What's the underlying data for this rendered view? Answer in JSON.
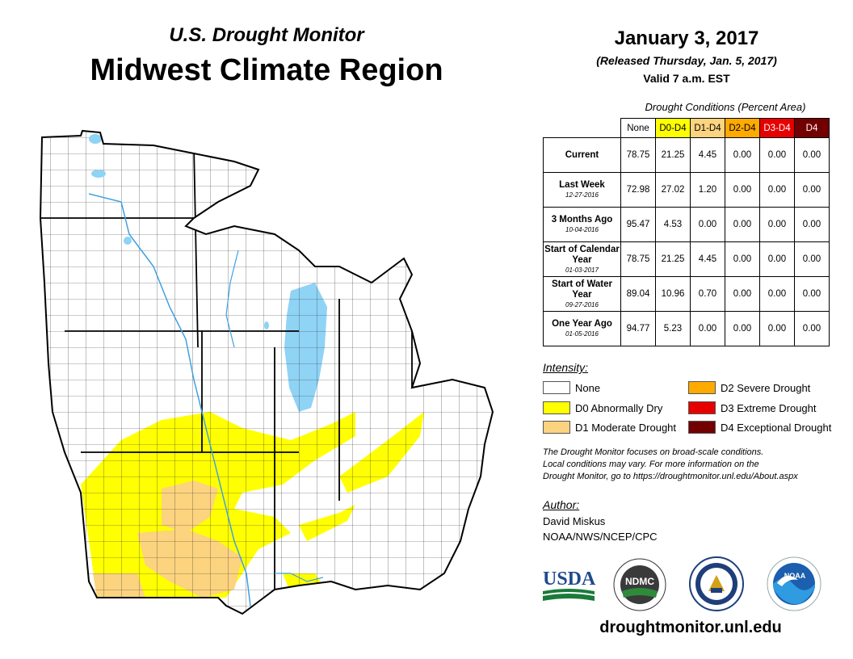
{
  "header": {
    "subtitle": "U.S. Drought Monitor",
    "title": "Midwest Climate Region",
    "date": "January 3, 2017",
    "released": "(Released Thursday, Jan. 5, 2017)",
    "valid": "Valid 7 a.m. EST"
  },
  "conditions": {
    "caption": "Drought Conditions (Percent Area)",
    "columns": [
      "None",
      "D0-D4",
      "D1-D4",
      "D2-D4",
      "D3-D4",
      "D4"
    ],
    "rows": [
      {
        "label": "Current",
        "sublabel": "",
        "values": [
          "78.75",
          "21.25",
          "4.45",
          "0.00",
          "0.00",
          "0.00"
        ]
      },
      {
        "label": "Last Week",
        "sublabel": "12-27-2016",
        "values": [
          "72.98",
          "27.02",
          "1.20",
          "0.00",
          "0.00",
          "0.00"
        ]
      },
      {
        "label": "3 Months Ago",
        "sublabel": "10-04-2016",
        "values": [
          "95.47",
          "4.53",
          "0.00",
          "0.00",
          "0.00",
          "0.00"
        ]
      },
      {
        "label": "Start of Calendar Year",
        "sublabel": "01-03-2017",
        "values": [
          "78.75",
          "21.25",
          "4.45",
          "0.00",
          "0.00",
          "0.00"
        ]
      },
      {
        "label": "Start of Water Year",
        "sublabel": "09-27-2016",
        "values": [
          "89.04",
          "10.96",
          "0.70",
          "0.00",
          "0.00",
          "0.00"
        ]
      },
      {
        "label": "One Year Ago",
        "sublabel": "01-05-2016",
        "values": [
          "94.77",
          "5.23",
          "0.00",
          "0.00",
          "0.00",
          "0.00"
        ]
      }
    ]
  },
  "legend": {
    "title": "Intensity:",
    "items": [
      {
        "label": "None",
        "color": "#ffffff"
      },
      {
        "label": "D0 Abnormally Dry",
        "color": "#ffff00"
      },
      {
        "label": "D1 Moderate Drought",
        "color": "#fcd37f"
      },
      {
        "label": "D2 Severe Drought",
        "color": "#ffaa00"
      },
      {
        "label": "D3 Extreme Drought",
        "color": "#e60000"
      },
      {
        "label": "D4 Exceptional Drought",
        "color": "#730000"
      }
    ]
  },
  "note": {
    "line1": "The Drought Monitor focuses on broad-scale conditions.",
    "line2": "Local conditions may vary. For more information on the",
    "line3": "Drought Monitor, go to https://droughtmonitor.unl.edu/About.aspx"
  },
  "author": {
    "title": "Author:",
    "name": "David Miskus",
    "org": "NOAA/NWS/NCEP/CPC"
  },
  "logos": {
    "usda": "USDA",
    "ndmc": "NDMC",
    "noaa": "NOAA"
  },
  "footer": {
    "website": "droughtmonitor.unl.edu"
  },
  "map_colors": {
    "water": "#8fd3f5",
    "river": "#3fa0e0",
    "none": "#ffffff",
    "d0": "#ffff00",
    "d1": "#fcd37f"
  }
}
